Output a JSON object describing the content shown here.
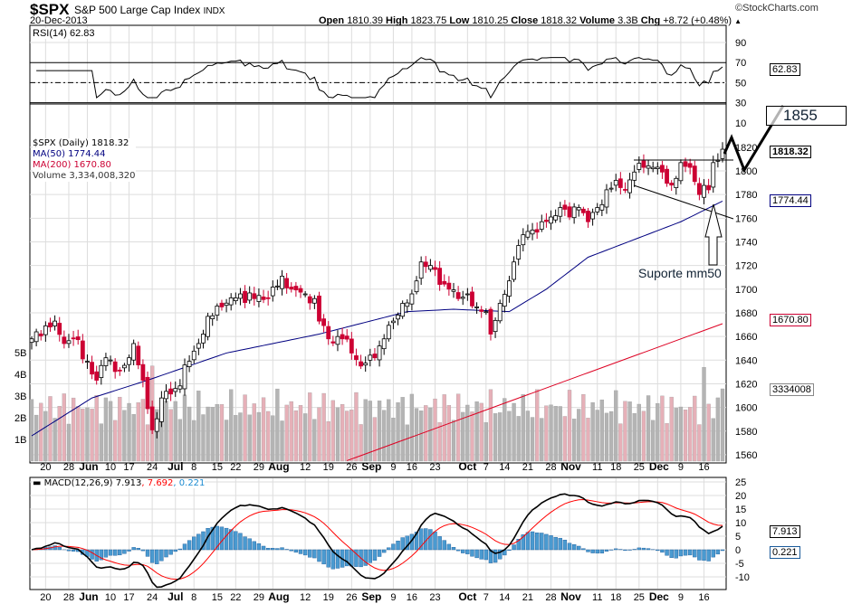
{
  "header": {
    "symbol": "$SPX",
    "name": "S&P 500 Large Cap Index",
    "exchange": "INDX",
    "date": "20-Dec-2013",
    "brand": "©StockCharts.com",
    "open_label": "Open",
    "open": "1810.39",
    "high_label": "High",
    "high": "1823.75",
    "low_label": "Low",
    "low": "1810.25",
    "close_label": "Close",
    "close": "1818.32",
    "volume_label": "Volume",
    "volume": "3.3B",
    "chg_label": "Chg",
    "chg": "+8.72 (+0.48%)",
    "chg_arrow": "▲"
  },
  "rsi": {
    "label": "RSI(14) 62.83",
    "value_tag": "62.83",
    "ticks": [
      90,
      70,
      50,
      30,
      10
    ]
  },
  "legend": {
    "price": "$SPX (Daily) 1818.32",
    "ma50": "MA(50) 1774.44",
    "ma200": "MA(200) 1670.80",
    "volume": "Volume 3,334,008,320"
  },
  "tags": {
    "price": "1818.32",
    "ma50": "1774.44",
    "ma200": "1670.80",
    "volume": "3334008"
  },
  "macd": {
    "label": "MACD(12,26,9)",
    "v1": "7.913",
    "v2": ", 7.692",
    "v3": ", 0.221",
    "tag1": "7.913",
    "tag2": "0.221",
    "ticks": [
      25,
      20,
      15,
      10,
      5,
      0,
      -5,
      -10
    ]
  },
  "annotations": {
    "target": "1855",
    "support": "Suporte mm50"
  },
  "colors": {
    "up": "#ffffff",
    "down": "#cc0033",
    "ma50": "#000080",
    "ma200": "#dd0022",
    "vol_up": "#b4b4b4",
    "vol_down": "#e6b0b8",
    "macd": "#000000",
    "signal": "#ff0000",
    "hist": "#4a9ad0"
  },
  "chart_data": {
    "type": "candlestick",
    "title": "$SPX S&P 500 Large Cap Index",
    "price_ticks": [
      1820,
      1800,
      1780,
      1760,
      1740,
      1720,
      1700,
      1680,
      1660,
      1640,
      1620,
      1600,
      1580,
      1560
    ],
    "volume_ticks": [
      "5B",
      "4B",
      "3B",
      "2B",
      "1B"
    ],
    "ylim": [
      1555,
      1830
    ],
    "days": 150,
    "x_labels": [
      [
        "20",
        3
      ],
      [
        "28",
        8
      ],
      [
        "Jun",
        12
      ],
      [
        "10",
        17
      ],
      [
        "17",
        21
      ],
      [
        "24",
        26
      ],
      [
        "Jul",
        31
      ],
      [
        "8",
        35
      ],
      [
        "15",
        40
      ],
      [
        "22",
        44
      ],
      [
        "29",
        49
      ],
      [
        "Aug",
        52
      ],
      [
        "12",
        59
      ],
      [
        "19",
        64
      ],
      [
        "26",
        69
      ],
      [
        "Sep",
        73
      ],
      [
        "9",
        78
      ],
      [
        "16",
        82
      ],
      [
        "23",
        87
      ],
      [
        "Oct",
        94
      ],
      [
        "7",
        98
      ],
      [
        "14",
        102
      ],
      [
        "21",
        107
      ],
      [
        "28",
        112
      ],
      [
        "Nov",
        116
      ],
      [
        "11",
        122
      ],
      [
        "18",
        126
      ],
      [
        "25",
        131
      ],
      [
        "Dec",
        135
      ],
      [
        "9",
        140
      ],
      [
        "16",
        145
      ]
    ],
    "close_anchors": [
      [
        0,
        1658
      ],
      [
        3,
        1669
      ],
      [
        5,
        1673
      ],
      [
        7,
        1654
      ],
      [
        9,
        1658
      ],
      [
        12,
        1639
      ],
      [
        14,
        1623
      ],
      [
        16,
        1642
      ],
      [
        19,
        1631
      ],
      [
        21,
        1642
      ],
      [
        22,
        1654
      ],
      [
        24,
        1623
      ],
      [
        26,
        1581
      ],
      [
        28,
        1608
      ],
      [
        31,
        1616
      ],
      [
        34,
        1639
      ],
      [
        36,
        1654
      ],
      [
        38,
        1677
      ],
      [
        41,
        1685
      ],
      [
        45,
        1696
      ],
      [
        48,
        1692
      ],
      [
        51,
        1692
      ],
      [
        54,
        1711
      ],
      [
        56,
        1700
      ],
      [
        59,
        1696
      ],
      [
        61,
        1692
      ],
      [
        62,
        1673
      ],
      [
        64,
        1658
      ],
      [
        67,
        1658
      ],
      [
        69,
        1646
      ],
      [
        71,
        1635
      ],
      [
        74,
        1642
      ],
      [
        76,
        1658
      ],
      [
        78,
        1673
      ],
      [
        80,
        1688
      ],
      [
        82,
        1696
      ],
      [
        84,
        1723
      ],
      [
        86,
        1720
      ],
      [
        88,
        1704
      ],
      [
        90,
        1700
      ],
      [
        92,
        1692
      ],
      [
        94,
        1696
      ],
      [
        96,
        1685
      ],
      [
        98,
        1681
      ],
      [
        99,
        1662
      ],
      [
        101,
        1688
      ],
      [
        103,
        1707
      ],
      [
        104,
        1723
      ],
      [
        106,
        1746
      ],
      [
        108,
        1750
      ],
      [
        110,
        1757
      ],
      [
        112,
        1761
      ],
      [
        114,
        1769
      ],
      [
        116,
        1761
      ],
      [
        118,
        1769
      ],
      [
        120,
        1757
      ],
      [
        122,
        1769
      ],
      [
        124,
        1784
      ],
      [
        126,
        1792
      ],
      [
        128,
        1784
      ],
      [
        130,
        1799
      ],
      [
        132,
        1803
      ],
      [
        134,
        1803
      ],
      [
        136,
        1799
      ],
      [
        138,
        1788
      ],
      [
        140,
        1807
      ],
      [
        142,
        1803
      ],
      [
        144,
        1780
      ],
      [
        146,
        1784
      ],
      [
        147,
        1807
      ],
      [
        149,
        1818.32
      ]
    ],
    "ma50": [
      [
        0,
        1576
      ],
      [
        13,
        1608
      ],
      [
        25,
        1623
      ],
      [
        42,
        1646
      ],
      [
        62,
        1662
      ],
      [
        81,
        1681
      ],
      [
        91,
        1683
      ],
      [
        103,
        1681
      ],
      [
        111,
        1700
      ],
      [
        120,
        1727
      ],
      [
        130,
        1742
      ],
      [
        140,
        1757
      ],
      [
        149,
        1774.44
      ]
    ],
    "ma200": [
      [
        68,
        1555
      ],
      [
        149,
        1670.8
      ]
    ],
    "last_volume": 3334008320
  }
}
